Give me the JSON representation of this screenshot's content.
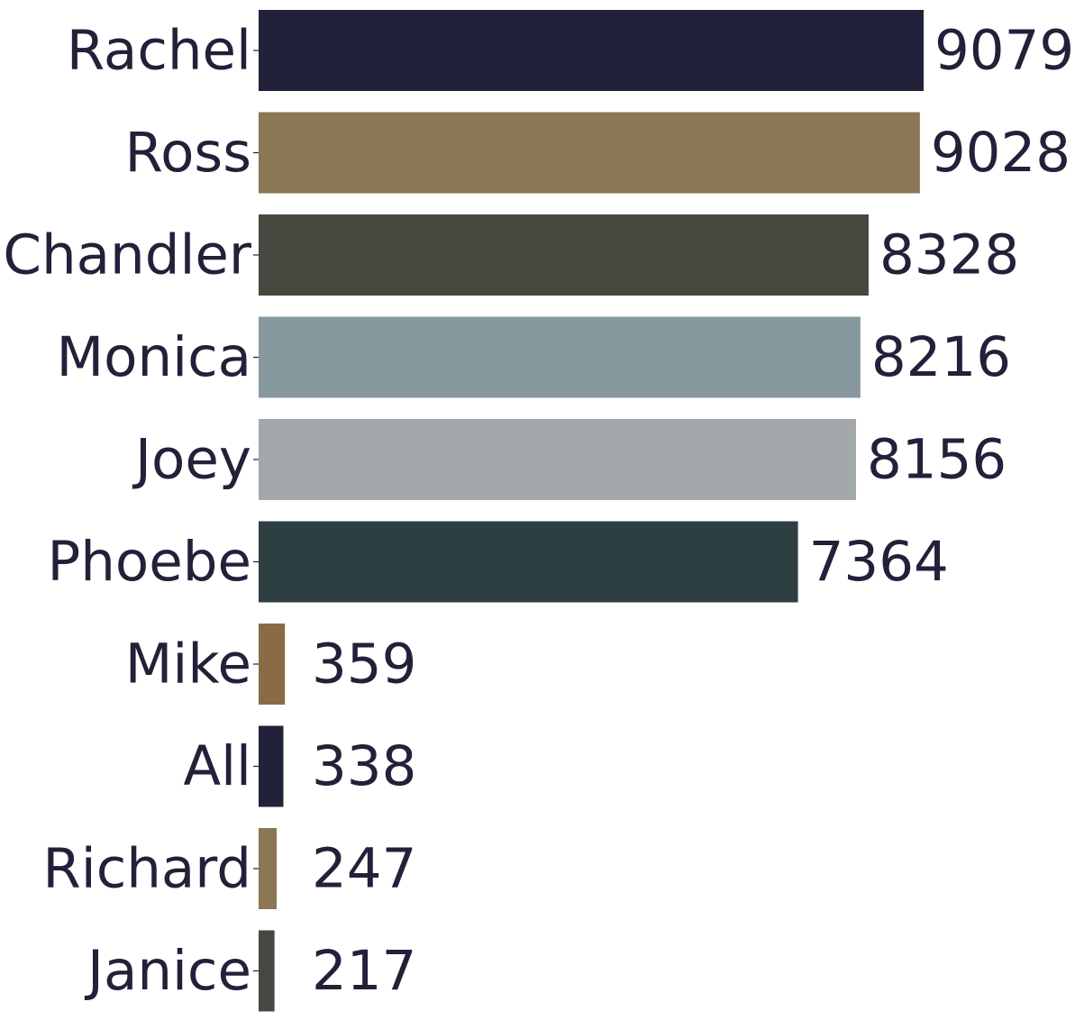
{
  "chart_data": {
    "type": "bar",
    "orientation": "horizontal",
    "title": "",
    "xlabel": "",
    "ylabel": "",
    "grid": false,
    "categories": [
      "Rachel",
      "Ross",
      "Chandler",
      "Monica",
      "Joey",
      "Phoebe",
      "Mike",
      "All",
      "Richard",
      "Janice"
    ],
    "values": [
      9079,
      9028,
      8328,
      8216,
      8156,
      7364,
      359,
      338,
      247,
      217
    ],
    "colors": [
      "#21223a",
      "#8b7656",
      "#46473f",
      "#87999e",
      "#a3a9aa",
      "#2d3f41",
      "#8b6b43",
      "#21223a",
      "#8b7656",
      "#46473f"
    ],
    "xlim": [
      0,
      9079
    ],
    "value_labels_shown": true
  }
}
